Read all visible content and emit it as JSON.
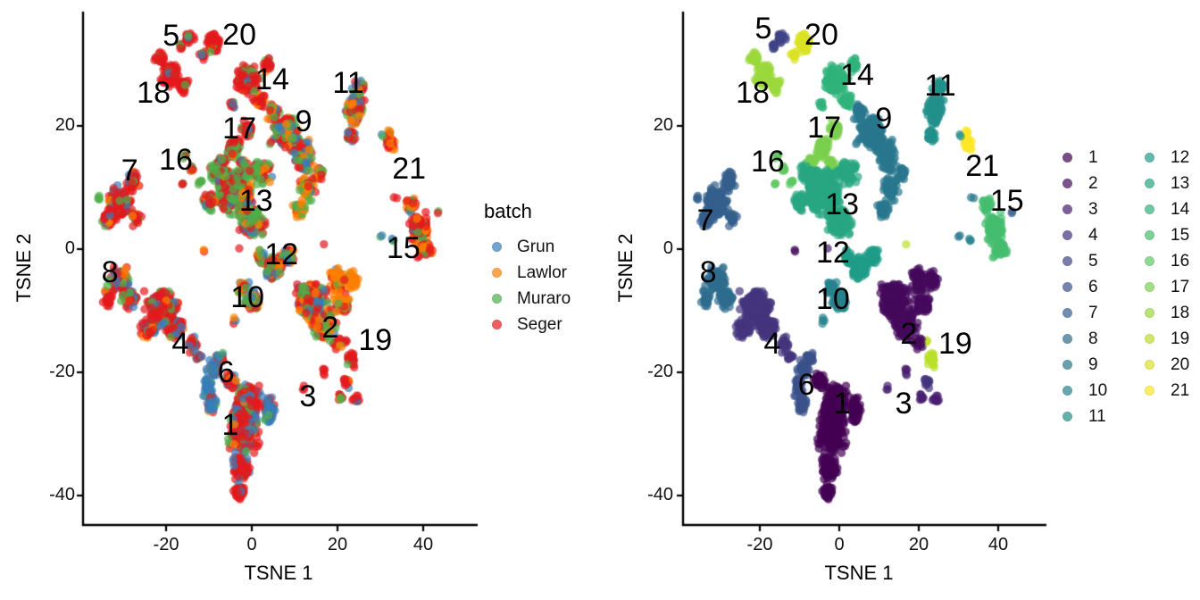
{
  "figure": {
    "background": "#ffffff"
  },
  "legend_batch": {
    "title": "batch"
  },
  "chart_data": {
    "type": "scatter",
    "title": "",
    "xlabel": "TSNE 1",
    "ylabel": "TSNE 2",
    "x_ticks": [
      -20,
      0,
      20,
      40
    ],
    "y_ticks": [
      20,
      0,
      -20,
      -40
    ],
    "x_range": [
      -38,
      46
    ],
    "y_range": [
      -44,
      38
    ],
    "grid": false,
    "panels": [
      {
        "id": "batch-panel",
        "color_by": "batch",
        "legend_title": "batch",
        "legend_position": "right"
      },
      {
        "id": "cluster-panel",
        "color_by": "cluster",
        "legend_title": "",
        "legend_position": "right"
      }
    ],
    "point_style": {
      "radius_px": 4.7,
      "opacity": 0.7
    },
    "batches": [
      {
        "name": "Grun",
        "color": "#377EB8"
      },
      {
        "name": "Lawlor",
        "color": "#FF7F00"
      },
      {
        "name": "Muraro",
        "color": "#4DAF4A"
      },
      {
        "name": "Seger",
        "color": "#E41A1C"
      }
    ],
    "clusters": [
      {
        "id": "1",
        "color": "#440154",
        "batch_mix": [
          0.25,
          0.06,
          0.1,
          0.59
        ],
        "label_pos_batch_panel": [
          -5.0,
          -28.6
        ],
        "label_pos_cluster_panel": [
          0.7,
          -25.0
        ],
        "blobs": [
          [
            -1,
            -25,
            4,
            3.8,
            210
          ],
          [
            -2,
            -30,
            4.5,
            4,
            200
          ],
          [
            -2.5,
            -35.5,
            2.5,
            2.5,
            85,
            [
              0.15,
              0.03,
              0.04,
              0.78
            ]
          ],
          [
            -3,
            -39.5,
            1.8,
            1.7,
            40,
            [
              0.1,
              0.02,
              0.03,
              0.85
            ]
          ],
          [
            4,
            -26,
            2,
            3,
            60,
            [
              0.75,
              0.04,
              0.06,
              0.15
            ]
          ],
          [
            -5,
            -21.5,
            2,
            1.7,
            50,
            [
              0.35,
              0.05,
              0.1,
              0.5
            ]
          ]
        ]
      },
      {
        "id": "2",
        "color": "#460A5D",
        "batch_mix": [
          0.12,
          0.25,
          0.28,
          0.35
        ],
        "label_pos_batch_panel": [
          18.3,
          -12.8
        ],
        "label_pos_cluster_panel": [
          17.5,
          -13.8
        ],
        "blobs": [
          [
            14,
            -8.5,
            4.5,
            4,
            250
          ],
          [
            17,
            -12.5,
            3.5,
            3,
            110
          ],
          [
            20,
            -5,
            2.5,
            2.5,
            70,
            [
              0.05,
              0.7,
              0.1,
              0.15
            ]
          ],
          [
            23.5,
            -5,
            1.8,
            2,
            45,
            [
              0.05,
              0.72,
              0.08,
              0.15
            ]
          ],
          [
            21,
            -9,
            2.5,
            2,
            75,
            [
              0.06,
              0.6,
              0.14,
              0.2
            ]
          ],
          [
            20,
            -15,
            1.5,
            1.5,
            16
          ],
          [
            -11,
            -0.3,
            0.5,
            0.5,
            2
          ]
        ]
      },
      {
        "id": "3",
        "color": "#481F70",
        "batch_mix": [
          0.03,
          0.05,
          0.05,
          0.87
        ],
        "label_pos_batch_panel": [
          13.1,
          -23.9
        ],
        "label_pos_cluster_panel": [
          16.2,
          -25.0
        ],
        "blobs": [
          [
            20.5,
            -24,
            1.2,
            1.2,
            9
          ],
          [
            24.5,
            -24.3,
            1.3,
            1.4,
            11
          ],
          [
            17,
            -19.8,
            1,
            1,
            5
          ],
          [
            -2.9,
            0.2,
            0.3,
            0.3,
            1
          ],
          [
            12,
            -22.4,
            0.8,
            0.8,
            3
          ]
        ]
      },
      {
        "id": "4",
        "color": "#44347E",
        "batch_mix": [
          0.22,
          0.08,
          0.12,
          0.58
        ],
        "label_pos_batch_panel": [
          -16.7,
          -15.3
        ],
        "label_pos_cluster_panel": [
          -16.9,
          -15.3
        ],
        "blobs": [
          [
            -21,
            -9.5,
            4.5,
            3.5,
            240
          ],
          [
            -18,
            -13,
            3,
            2.5,
            90
          ],
          [
            -24,
            -13,
            2.5,
            2,
            60
          ],
          [
            -14,
            -15.5,
            1.5,
            1.5,
            22
          ],
          [
            -12.5,
            -17.5,
            1,
            1,
            10
          ],
          [
            22,
            -21.5,
            1.2,
            1.2,
            12,
            [
              0.02,
              0.03,
              0.05,
              0.9
            ]
          ]
        ]
      },
      {
        "id": "5",
        "color": "#404386",
        "batch_mix": [
          0.03,
          0.03,
          0.04,
          0.9
        ],
        "label_pos_batch_panel": [
          -18.8,
          34.7
        ],
        "label_pos_cluster_panel": [
          -19.1,
          35.8
        ],
        "blobs": [
          [
            -14.5,
            34.3,
            1.5,
            1.4,
            25
          ],
          [
            -16.5,
            33,
            0.8,
            0.8,
            8
          ]
        ]
      },
      {
        "id": "6",
        "color": "#3B518A",
        "batch_mix": [
          0.72,
          0.05,
          0.08,
          0.15
        ],
        "label_pos_batch_panel": [
          -6.0,
          -20.0
        ],
        "label_pos_cluster_panel": [
          -8.3,
          -22.0
        ],
        "blobs": [
          [
            -9,
            -19.5,
            2,
            1.8,
            45
          ],
          [
            -10,
            -22.5,
            1.8,
            2,
            45
          ],
          [
            -9.5,
            -25.5,
            1.5,
            1.8,
            30
          ],
          [
            -7.5,
            -17.8,
            1.2,
            1.2,
            20
          ]
        ]
      },
      {
        "id": "7",
        "color": "#355F8D",
        "batch_mix": [
          0.12,
          0.07,
          0.12,
          0.69
        ],
        "label_pos_batch_panel": [
          -28.5,
          12.8
        ],
        "label_pos_cluster_panel": [
          -33.7,
          4.6
        ],
        "blobs": [
          [
            -31,
            7.5,
            3.5,
            3,
            180
          ],
          [
            -28,
            11,
            2,
            2,
            55
          ],
          [
            -33.5,
            5,
            2,
            2,
            45
          ],
          [
            -27,
            5,
            1.5,
            1.5,
            20
          ],
          [
            -35.5,
            8.5,
            0.8,
            0.8,
            4,
            [
              0.5,
              0,
              0.5,
              0
            ]
          ],
          [
            43.5,
            6,
            0.5,
            0.5,
            2
          ]
        ]
      },
      {
        "id": "8",
        "color": "#2F6C8E",
        "batch_mix": [
          0.2,
          0.1,
          0.14,
          0.56
        ],
        "label_pos_batch_panel": [
          -33.1,
          -3.7
        ],
        "label_pos_cluster_panel": [
          -33.0,
          -3.7
        ],
        "blobs": [
          [
            -31,
            -5,
            3,
            2.6,
            120
          ],
          [
            -28.5,
            -8,
            2.5,
            2,
            55
          ],
          [
            -33.5,
            -8,
            1.5,
            1.8,
            30
          ]
        ]
      },
      {
        "id": "9",
        "color": "#2A788E",
        "batch_mix": [
          0.25,
          0.18,
          0.22,
          0.35
        ],
        "label_pos_batch_panel": [
          12.1,
          20.7
        ],
        "label_pos_cluster_panel": [
          11.2,
          21.2
        ],
        "blobs": [
          [
            8,
            19,
            4,
            3.1,
            220
          ],
          [
            12,
            15,
            3,
            3,
            110
          ],
          [
            5,
            22,
            2,
            2,
            45
          ],
          [
            13,
            10,
            2.5,
            2.5,
            70,
            [
              0.08,
              0.5,
              0.18,
              0.24
            ]
          ],
          [
            11,
            6.5,
            2,
            2,
            40,
            [
              0.08,
              0.5,
              0.18,
              0.24
            ]
          ],
          [
            15.5,
            12.5,
            1.5,
            1.5,
            25,
            [
              0.1,
              0.45,
              0.15,
              0.3
            ]
          ],
          [
            33.5,
            8.5,
            0.6,
            0.6,
            2
          ],
          [
            30.2,
            2.2,
            0.6,
            0.6,
            2
          ]
        ]
      },
      {
        "id": "10",
        "color": "#26838E",
        "batch_mix": [
          0.3,
          0.25,
          0.15,
          0.3
        ],
        "label_pos_batch_panel": [
          -1.0,
          -7.8
        ],
        "label_pos_cluster_panel": [
          -1.6,
          -8.1
        ],
        "blobs": [
          [
            0,
            -8.5,
            2.2,
            2,
            70
          ],
          [
            -2,
            -6.2,
            1.5,
            1.5,
            30
          ],
          [
            -4,
            -11.8,
            0.8,
            0.8,
            4
          ],
          [
            32.8,
            1.5,
            0.7,
            0.7,
            3
          ]
        ]
      },
      {
        "id": "11",
        "color": "#22908B",
        "batch_mix": [
          0.12,
          0.2,
          0.18,
          0.5
        ],
        "label_pos_batch_panel": [
          22.5,
          26.9
        ],
        "label_pos_cluster_panel": [
          25.4,
          26.5
        ],
        "blobs": [
          [
            24,
            22.5,
            2.5,
            3.2,
            110
          ],
          [
            25,
            26,
            1.8,
            1.8,
            40
          ],
          [
            23,
            18.5,
            1.5,
            1.8,
            25
          ],
          [
            30.5,
            18.5,
            0.5,
            0.5,
            2
          ]
        ]
      },
      {
        "id": "12",
        "color": "#1F9D89",
        "batch_mix": [
          0.15,
          0.2,
          0.35,
          0.3
        ],
        "label_pos_batch_panel": [
          6.9,
          -0.9
        ],
        "label_pos_cluster_panel": [
          -1.6,
          -0.6
        ],
        "blobs": [
          [
            5,
            -3,
            2.8,
            2.2,
            110
          ],
          [
            8.5,
            -1.2,
            2,
            1.6,
            50
          ],
          [
            2,
            -1.2,
            1.5,
            1.5,
            25
          ]
        ]
      },
      {
        "id": "13",
        "color": "#28A682",
        "batch_mix": [
          0.08,
          0.13,
          0.44,
          0.35
        ],
        "label_pos_batch_panel": [
          1.0,
          7.8
        ],
        "label_pos_cluster_panel": [
          0.7,
          7.3
        ],
        "blobs": [
          [
            -4,
            9.5,
            5.5,
            4.6,
            330
          ],
          [
            0,
            4.5,
            4,
            3,
            140
          ],
          [
            -8,
            12.5,
            2.5,
            2,
            50,
            [
              0.05,
              0.05,
              0.68,
              0.22
            ]
          ],
          [
            2,
            12.5,
            3,
            2.5,
            90
          ],
          [
            -10,
            7.5,
            2,
            2,
            45
          ]
        ]
      },
      {
        "id": "14",
        "color": "#31B37C",
        "batch_mix": [
          0.07,
          0.1,
          0.12,
          0.71
        ],
        "label_pos_batch_panel": [
          4.8,
          27.5
        ],
        "label_pos_cluster_panel": [
          4.5,
          28.3
        ],
        "blobs": [
          [
            -1,
            27.5,
            3.5,
            2.7,
            160
          ],
          [
            2,
            24,
            2,
            1.5,
            40
          ],
          [
            -4.5,
            23.5,
            1,
            1,
            10
          ],
          [
            3.5,
            30,
            1.5,
            1.3,
            25
          ]
        ]
      },
      {
        "id": "15",
        "color": "#46BD6F",
        "batch_mix": [
          0.05,
          0.3,
          0.12,
          0.53
        ],
        "label_pos_batch_panel": [
          35.4,
          0.1
        ],
        "label_pos_cluster_panel": [
          42.2,
          7.8
        ],
        "blobs": [
          [
            39,
            3.5,
            2.8,
            3,
            130
          ],
          [
            40.5,
            0,
            2.2,
            1.8,
            45
          ],
          [
            37,
            7,
            1.5,
            1.5,
            22
          ]
        ]
      },
      {
        "id": "16",
        "color": "#5FC863",
        "batch_mix": [
          0.05,
          0.1,
          0.45,
          0.4
        ],
        "label_pos_batch_panel": [
          -17.7,
          14.5
        ],
        "label_pos_cluster_panel": [
          -18.0,
          14.2
        ],
        "blobs": [
          [
            -14,
            13,
            1,
            1,
            9
          ],
          [
            -12,
            11,
            0.8,
            0.8,
            6
          ],
          [
            -15.5,
            15.3,
            0.8,
            0.8,
            5
          ],
          [
            -16,
            10.5,
            0.6,
            0.6,
            3
          ]
        ]
      },
      {
        "id": "17",
        "color": "#7BD04F",
        "batch_mix": [
          0.1,
          0.12,
          0.28,
          0.5
        ],
        "label_pos_batch_panel": [
          -2.9,
          19.6
        ],
        "label_pos_cluster_panel": [
          -3.8,
          19.7
        ],
        "blobs": [
          [
            -4,
            16.5,
            2.5,
            2,
            70
          ],
          [
            -1,
            19.5,
            2,
            1.6,
            40
          ],
          [
            -7,
            14.5,
            1.5,
            1.2,
            18
          ],
          [
            -2,
            14,
            1.5,
            1.2,
            18
          ]
        ]
      },
      {
        "id": "18",
        "color": "#9BD93C",
        "batch_mix": [
          0.03,
          0.04,
          0.05,
          0.88
        ],
        "label_pos_batch_panel": [
          -22.9,
          25.3
        ],
        "label_pos_cluster_panel": [
          -21.8,
          25.3
        ],
        "blobs": [
          [
            -19,
            28.5,
            2.6,
            2.4,
            100
          ],
          [
            -16,
            26.5,
            1.5,
            1.5,
            30
          ],
          [
            -21.5,
            31,
            1.5,
            1.3,
            25
          ]
        ]
      },
      {
        "id": "19",
        "color": "#BBDF2B",
        "batch_mix": [
          0.02,
          0.03,
          0.05,
          0.9
        ],
        "label_pos_batch_panel": [
          28.8,
          -14.8
        ],
        "label_pos_cluster_panel": [
          29.2,
          -15.3
        ],
        "blobs": [
          [
            23.5,
            -18,
            1.5,
            1.5,
            30
          ],
          [
            17,
            0.8,
            0.4,
            0.4,
            1
          ],
          [
            22,
            -15,
            0.6,
            0.6,
            3
          ]
        ]
      },
      {
        "id": "20",
        "color": "#DCE227",
        "batch_mix": [
          0.03,
          0.04,
          0.05,
          0.88
        ],
        "label_pos_batch_panel": [
          -2.9,
          34.8
        ],
        "label_pos_cluster_panel": [
          -4.5,
          34.8
        ],
        "blobs": [
          [
            -9,
            33.5,
            2.2,
            1.9,
            70
          ],
          [
            -11.5,
            31.5,
            1,
            1,
            15
          ]
        ]
      },
      {
        "id": "21",
        "color": "#FDE725",
        "batch_mix": [
          0.05,
          0.3,
          0.1,
          0.55
        ],
        "label_pos_batch_panel": [
          36.7,
          13.1
        ],
        "label_pos_cluster_panel": [
          36.0,
          13.5
        ],
        "blobs": [
          [
            32.5,
            17,
            1.2,
            1.7,
            24
          ],
          [
            32,
            19,
            0.7,
            0.7,
            6
          ]
        ]
      }
    ]
  }
}
